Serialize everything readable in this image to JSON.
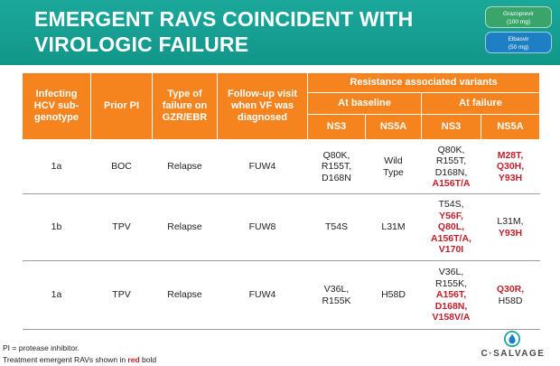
{
  "slide": {
    "title": "EMERGENT RAVS COINCIDENT WITH VIROLOGIC FAILURE",
    "badges": [
      {
        "line1": "Grazoprevir",
        "line2": "(100 mg)",
        "color": "#3aa56a"
      },
      {
        "line1": "Elbasvir",
        "line2": "(50 mg)",
        "color": "#1f7fc4"
      }
    ]
  },
  "table": {
    "headers": {
      "genotype": "Infecting HCV sub-genotype",
      "prior_pi": "Prior PI",
      "failure_type": "Type of failure on GZR/EBR",
      "followup": "Follow-up visit when VF was diagnosed",
      "rav_group": "Resistance associated variants",
      "baseline": "At baseline",
      "failure": "At failure",
      "ns3_a": "NS3",
      "ns5a_a": "NS5A",
      "ns3_b": "NS3",
      "ns5a_b": "NS5A"
    },
    "rows": [
      {
        "genotype": "1a",
        "prior_pi": "BOC",
        "failure_type": "Relapse",
        "followup": "FUW4",
        "base_ns3": [
          {
            "t": "Q80K,",
            "e": false
          },
          {
            "t": "R155T,",
            "e": false
          },
          {
            "t": "D168N",
            "e": false
          }
        ],
        "base_ns5a": [
          {
            "t": "Wild",
            "e": false
          },
          {
            "t": "Type",
            "e": false
          }
        ],
        "fail_ns3": [
          {
            "t": "Q80K,",
            "e": false
          },
          {
            "t": "R155T,",
            "e": false
          },
          {
            "t": "D168N,",
            "e": false
          },
          {
            "t": "A156T/A",
            "e": true
          }
        ],
        "fail_ns5a": [
          {
            "t": "M28T,",
            "e": true
          },
          {
            "t": "Q30H,",
            "e": true
          },
          {
            "t": "Y93H",
            "e": true
          }
        ]
      },
      {
        "genotype": "1b",
        "prior_pi": "TPV",
        "failure_type": "Relapse",
        "followup": "FUW8",
        "base_ns3": [
          {
            "t": "T54S",
            "e": false
          }
        ],
        "base_ns5a": [
          {
            "t": "L31M",
            "e": false
          }
        ],
        "fail_ns3": [
          {
            "t": "T54S,",
            "e": false
          },
          {
            "t": "Y56F,",
            "e": true
          },
          {
            "t": "Q80L,",
            "e": true
          },
          {
            "t": "A156T/A,",
            "e": true
          },
          {
            "t": "V170I",
            "e": true
          }
        ],
        "fail_ns5a": [
          {
            "t": "L31M,",
            "e": false
          },
          {
            "t": "Y93H",
            "e": true
          }
        ]
      },
      {
        "genotype": "1a",
        "prior_pi": "TPV",
        "failure_type": "Relapse",
        "followup": "FUW4",
        "base_ns3": [
          {
            "t": "V36L,",
            "e": false
          },
          {
            "t": "R155K",
            "e": false
          }
        ],
        "base_ns5a": [
          {
            "t": "H58D",
            "e": false
          }
        ],
        "fail_ns3": [
          {
            "t": "V36L,",
            "e": false
          },
          {
            "t": "R155K,",
            "e": false
          },
          {
            "t": "A156T,",
            "e": true
          },
          {
            "t": "D168N,",
            "e": true
          },
          {
            "t": "V158V/A",
            "e": true
          }
        ],
        "fail_ns5a": [
          {
            "t": "Q30R,",
            "e": true
          },
          {
            "t": "H58D",
            "e": false
          }
        ]
      }
    ]
  },
  "footnotes": {
    "line1": "PI = protease inhibitor.",
    "line2_prefix": "Treatment emergent RAVs shown in ",
    "line2_red": "red",
    "line2_suffix": " bold"
  },
  "logo": {
    "text": "C·SALVAGE",
    "icon": "droplet-shield-icon"
  },
  "colors": {
    "header_teal": "#12968a",
    "table_orange": "#f5841f",
    "emergent_red": "#c0202a"
  }
}
